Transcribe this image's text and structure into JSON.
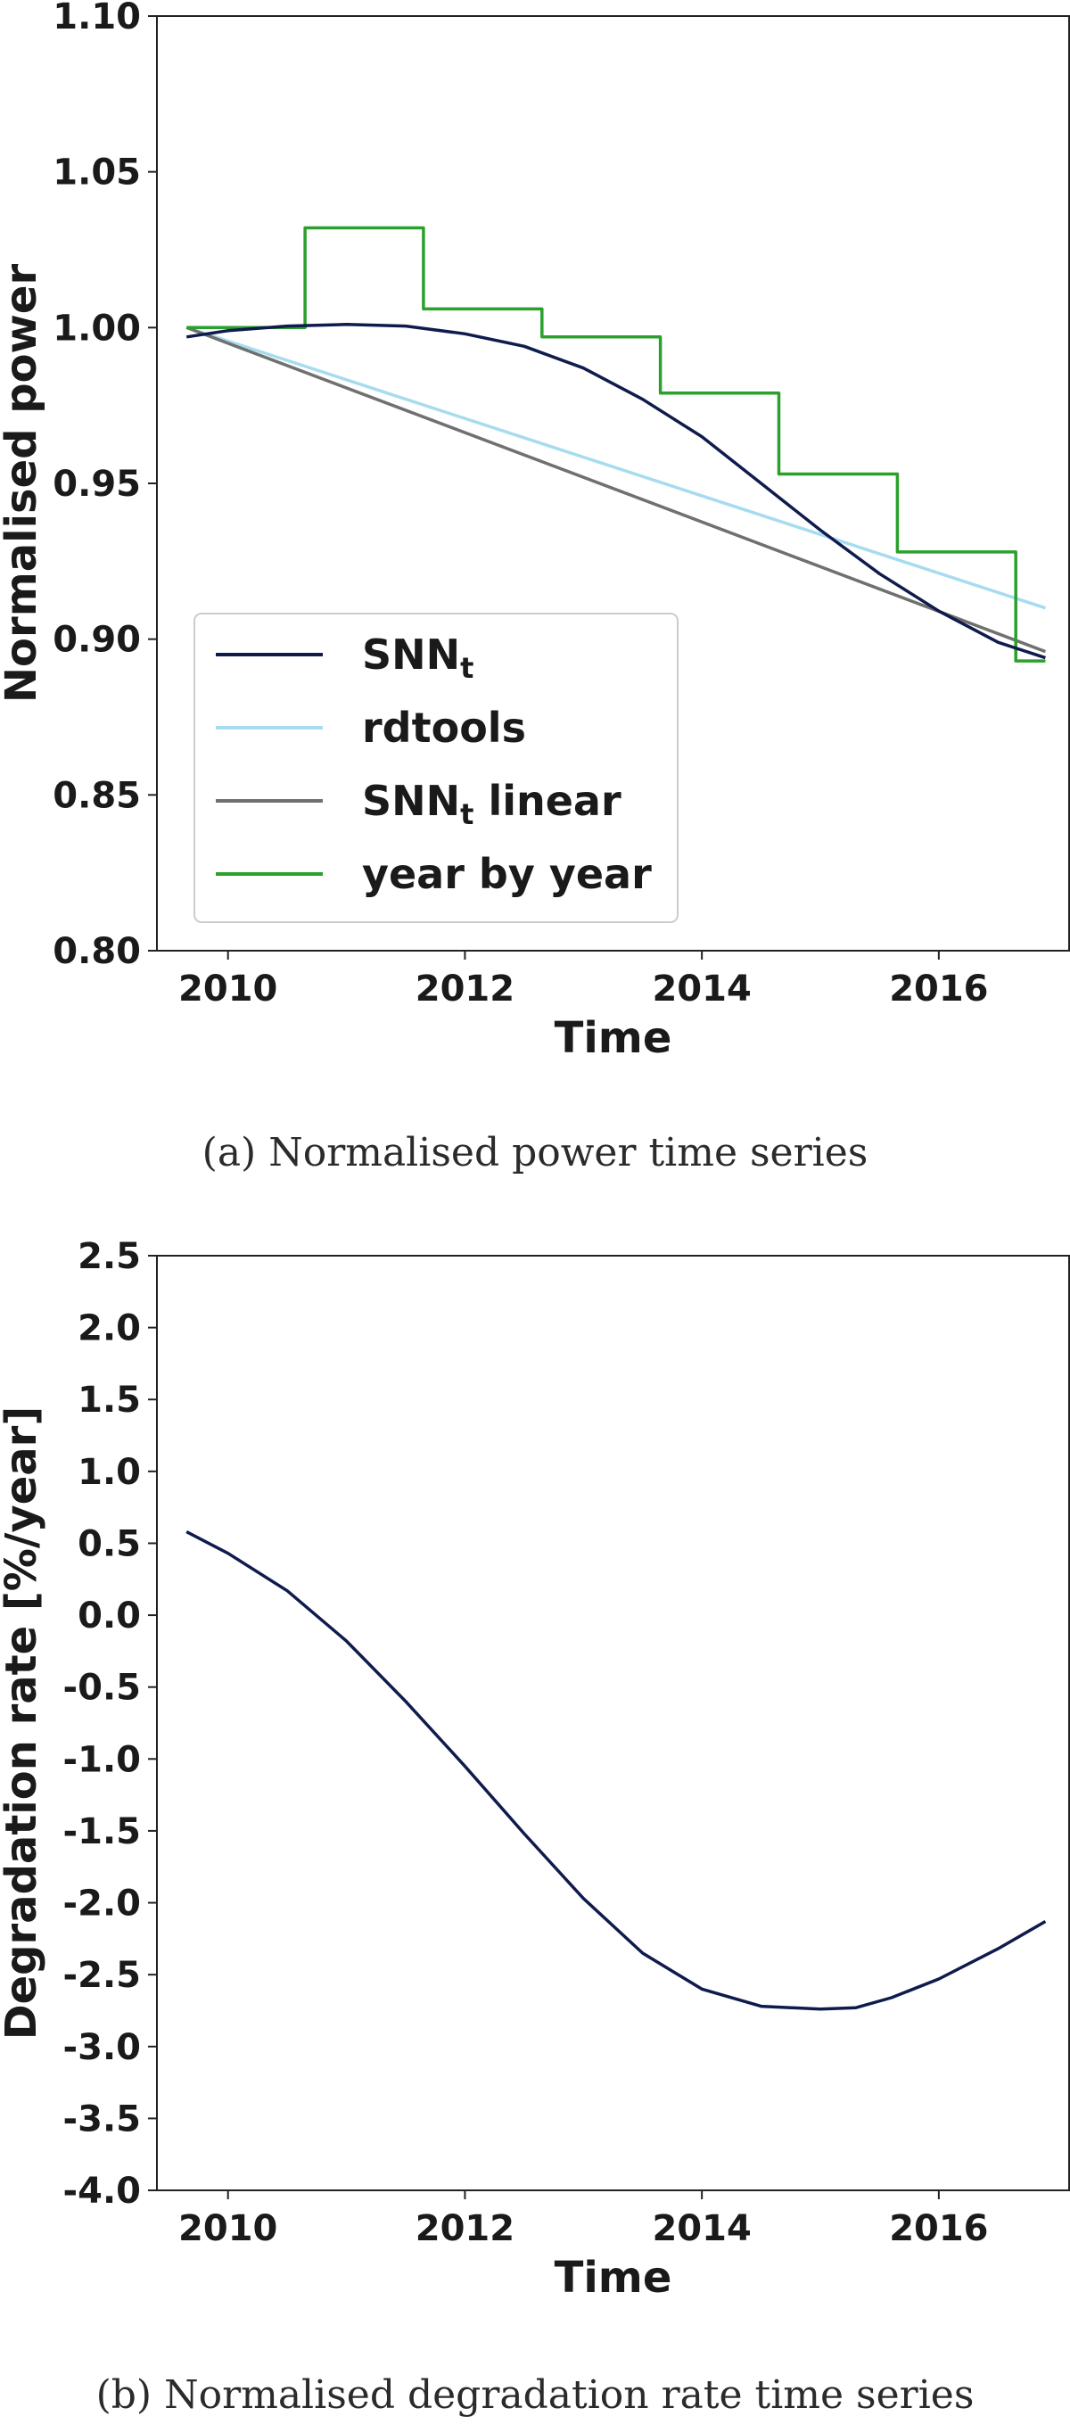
{
  "chart_data": [
    {
      "type": "line",
      "xlabel": "Time",
      "ylabel": "Normalised power",
      "xlim": [
        2009.4,
        2017.1
      ],
      "ylim": [
        0.8,
        1.1
      ],
      "xticks": [
        2010,
        2012,
        2014,
        2016
      ],
      "xtick_labels": [
        "2010",
        "2012",
        "2014",
        "2016"
      ],
      "yticks": [
        0.8,
        0.85,
        0.9,
        0.95,
        1.0,
        1.05,
        1.1
      ],
      "ytick_labels": [
        "0.80",
        "0.85",
        "0.90",
        "0.95",
        "1.00",
        "1.05",
        "1.10"
      ],
      "grid": false,
      "legend_position": "lower-left",
      "caption": "(a) Normalised power time series",
      "series": [
        {
          "name": "SNN",
          "name_subscript": "t",
          "color": "#0f1b4c",
          "style": "line",
          "x": [
            2009.65,
            2010.0,
            2010.5,
            2011.0,
            2011.5,
            2012.0,
            2012.5,
            2013.0,
            2013.5,
            2014.0,
            2014.5,
            2015.0,
            2015.5,
            2016.0,
            2016.5,
            2016.9
          ],
          "y": [
            0.997,
            0.999,
            1.0005,
            1.001,
            1.0005,
            0.998,
            0.994,
            0.987,
            0.977,
            0.965,
            0.95,
            0.935,
            0.921,
            0.909,
            0.899,
            0.894
          ]
        },
        {
          "name": "rdtools",
          "color": "#a6dcef",
          "style": "line",
          "x": [
            2009.65,
            2016.9
          ],
          "y": [
            1.0,
            0.91
          ]
        },
        {
          "name": "SNN",
          "name_subscript": "t",
          "name_suffix": " linear",
          "color": "#707070",
          "style": "line",
          "x": [
            2009.65,
            2016.9
          ],
          "y": [
            1.0,
            0.896
          ]
        },
        {
          "name": "year by year",
          "color": "#2ca02c",
          "style": "step",
          "x": [
            2009.65,
            2010.65,
            2010.65,
            2011.65,
            2011.65,
            2012.65,
            2012.65,
            2013.65,
            2013.65,
            2014.65,
            2014.65,
            2015.65,
            2015.65,
            2016.65,
            2016.65,
            2016.9
          ],
          "y": [
            1.0,
            1.0,
            1.032,
            1.032,
            1.006,
            1.006,
            0.997,
            0.997,
            0.979,
            0.979,
            0.953,
            0.953,
            0.928,
            0.928,
            0.893,
            0.893
          ]
        }
      ]
    },
    {
      "type": "line",
      "xlabel": "Time",
      "ylabel": "Degradation rate [%/year]",
      "xlim": [
        2009.4,
        2017.1
      ],
      "ylim": [
        -4.0,
        2.5
      ],
      "xticks": [
        2010,
        2012,
        2014,
        2016
      ],
      "xtick_labels": [
        "2010",
        "2012",
        "2014",
        "2016"
      ],
      "yticks": [
        2.5,
        2.0,
        1.5,
        1.0,
        0.5,
        0.0,
        -0.5,
        -1.0,
        -1.5,
        -2.0,
        -2.5,
        -3.0,
        -3.5,
        -4.0
      ],
      "ytick_labels": [
        "2.5",
        "2.0",
        "1.5",
        "1.0",
        "0.5",
        "0.0",
        "-0.5",
        "-1.0",
        "-1.5",
        "-2.0",
        "-2.5",
        "-3.0",
        "-3.5",
        "-4.0"
      ],
      "grid": false,
      "caption": "(b) Normalised degradation rate time series",
      "series": [
        {
          "color": "#0f1b4c",
          "style": "line",
          "x": [
            2009.65,
            2010.0,
            2010.5,
            2011.0,
            2011.5,
            2012.0,
            2012.5,
            2013.0,
            2013.5,
            2014.0,
            2014.5,
            2015.0,
            2015.3,
            2015.6,
            2016.0,
            2016.5,
            2016.9
          ],
          "y": [
            0.58,
            0.43,
            0.17,
            -0.18,
            -0.6,
            -1.05,
            -1.52,
            -1.97,
            -2.35,
            -2.6,
            -2.72,
            -2.74,
            -2.73,
            -2.66,
            -2.53,
            -2.32,
            -2.13
          ]
        }
      ]
    }
  ]
}
